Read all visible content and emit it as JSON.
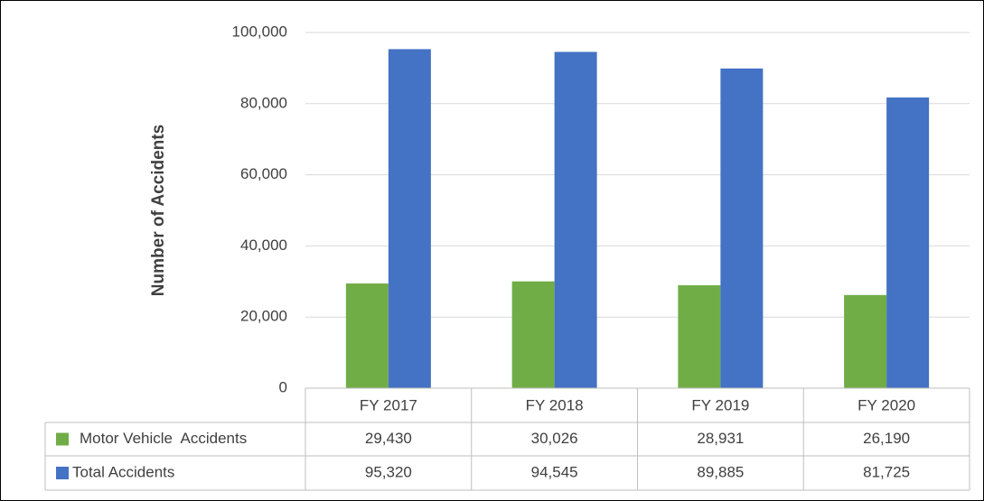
{
  "chart_data": {
    "type": "bar",
    "y_axis_label": "Number of Accidents",
    "categories": [
      "FY 2017",
      "FY 2018",
      "FY 2019",
      "FY 2020"
    ],
    "series": [
      {
        "name": "Motor Vehicle  Accidents",
        "color": "#70ad47",
        "values": [
          29430,
          30026,
          28931,
          26190
        ],
        "value_labels": [
          "29,430",
          "30,026",
          "28,931",
          "26,190"
        ]
      },
      {
        "name": "Total Accidents",
        "color": "#4472c4",
        "values": [
          95320,
          94545,
          89885,
          81725
        ],
        "value_labels": [
          "95,320",
          "94,545",
          "89,885",
          "81,725"
        ]
      }
    ],
    "ylim": [
      0,
      100000
    ],
    "yticks": [
      0,
      {
        "value": 20000,
        "label": "20,000"
      },
      {
        "value": 40000,
        "label": "40,000"
      },
      {
        "value": 60000,
        "label": "60,000"
      },
      {
        "value": 80000,
        "label": "80,000"
      },
      {
        "value": 100000,
        "label": "100,000"
      }
    ],
    "grid": true,
    "data_table": true
  }
}
